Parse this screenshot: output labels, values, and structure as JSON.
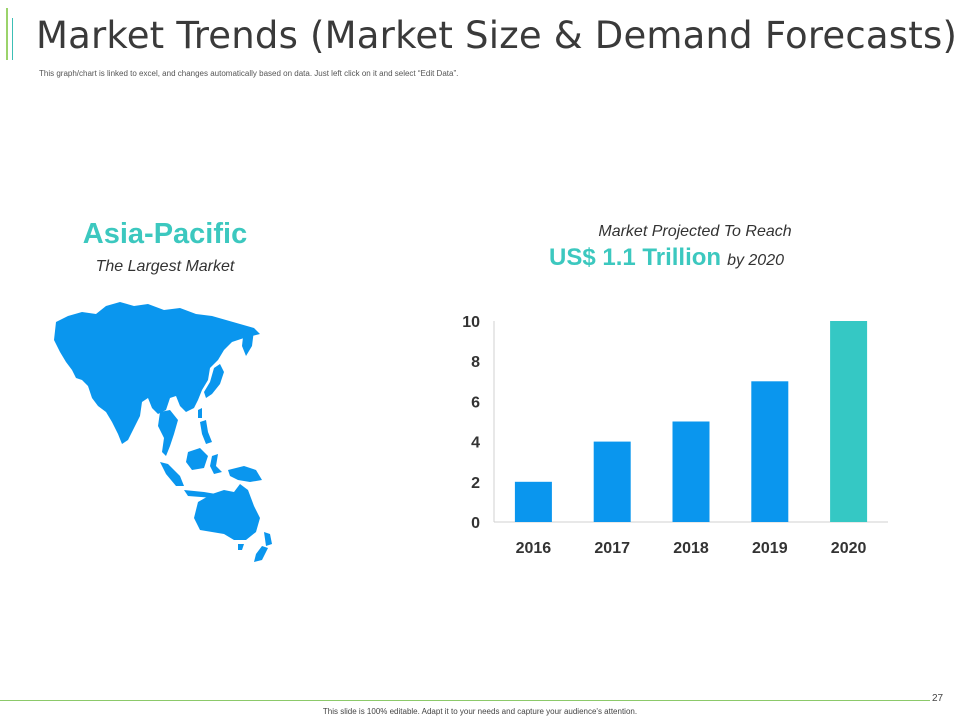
{
  "header": {
    "title": "Market Trends (Market Size & Demand Forecasts)",
    "subtitle": "This graph/chart is linked to excel, and changes automatically based on data. Just left click on it and select “Edit Data”."
  },
  "region": {
    "name": "Asia-Pacific",
    "tagline": "The Largest Market",
    "map_icon": "asia-pacific-map-icon",
    "map_color": "#0a96ee"
  },
  "projection": {
    "line1": "Market Projected To Reach",
    "amount": "US$ 1.1 Trillion",
    "suffix": "by 2020"
  },
  "chart_data": {
    "type": "bar",
    "categories": [
      "2016",
      "2017",
      "2018",
      "2019",
      "2020"
    ],
    "values": [
      2,
      4,
      5,
      7,
      10
    ],
    "colors": [
      "#0a96ee",
      "#0a96ee",
      "#0a96ee",
      "#0a96ee",
      "#35c8c4"
    ],
    "ylim": [
      0,
      10
    ],
    "yticks": [
      "0",
      "2",
      "4",
      "6",
      "8",
      "10"
    ],
    "grid": false,
    "title": "",
    "xlabel": "",
    "ylabel": ""
  },
  "footer": {
    "page_number": "27",
    "note": "This slide is 100% editable. Adapt it to your needs and capture your audience's attention."
  }
}
